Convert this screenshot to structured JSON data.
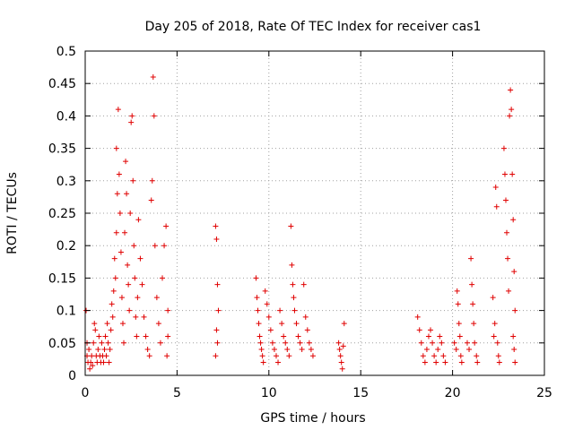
{
  "chart_data": {
    "type": "scatter",
    "title": "Day 205 of 2018, Rate Of TEC Index for receiver cas1",
    "xlabel": "GPS time / hours",
    "ylabel": "ROTI / TECUs",
    "xlim": [
      0,
      25
    ],
    "ylim": [
      0,
      0.5
    ],
    "x_ticks": [
      0,
      5,
      10,
      15,
      20,
      25
    ],
    "x_tick_labels": [
      "0",
      "5",
      "10",
      "15",
      "20",
      "25"
    ],
    "y_ticks": [
      0,
      0.05,
      0.1,
      0.15,
      0.2,
      0.25,
      0.3,
      0.35,
      0.4,
      0.45,
      0.5
    ],
    "y_tick_labels": [
      "0",
      "0.05",
      "0.1",
      "0.15",
      "0.2",
      "0.25",
      "0.3",
      "0.35",
      "0.4",
      "0.45",
      "0.5"
    ],
    "grid": true,
    "marker": "+",
    "color": "#e00000",
    "series": [
      {
        "points": [
          [
            0.05,
            0.1
          ],
          [
            0.1,
            0.05
          ],
          [
            0.1,
            0.03
          ],
          [
            0.15,
            0.02
          ],
          [
            0.2,
            0.04
          ],
          [
            0.25,
            0.01
          ],
          [
            0.3,
            0.02
          ],
          [
            0.35,
            0.03
          ],
          [
            0.4,
            0.015
          ],
          [
            0.45,
            0.05
          ],
          [
            0.5,
            0.08
          ],
          [
            0.55,
            0.07
          ],
          [
            0.6,
            0.03
          ],
          [
            0.65,
            0.02
          ],
          [
            0.7,
            0.04
          ],
          [
            0.75,
            0.06
          ],
          [
            0.8,
            0.03
          ],
          [
            0.85,
            0.02
          ],
          [
            0.9,
            0.05
          ],
          [
            0.95,
            0.03
          ],
          [
            1.0,
            0.02
          ],
          [
            1.05,
            0.04
          ],
          [
            1.1,
            0.06
          ],
          [
            1.15,
            0.03
          ],
          [
            1.2,
            0.08
          ],
          [
            1.25,
            0.05
          ],
          [
            1.3,
            0.02
          ],
          [
            1.35,
            0.04
          ],
          [
            1.4,
            0.07
          ],
          [
            1.45,
            0.11
          ],
          [
            1.5,
            0.09
          ],
          [
            1.55,
            0.13
          ],
          [
            1.6,
            0.18
          ],
          [
            1.65,
            0.15
          ],
          [
            1.7,
            0.22
          ],
          [
            1.75,
            0.28
          ],
          [
            1.7,
            0.35
          ],
          [
            1.8,
            0.41
          ],
          [
            1.85,
            0.31
          ],
          [
            1.9,
            0.25
          ],
          [
            1.95,
            0.19
          ],
          [
            2.0,
            0.12
          ],
          [
            2.05,
            0.08
          ],
          [
            2.1,
            0.05
          ],
          [
            2.15,
            0.22
          ],
          [
            2.2,
            0.33
          ],
          [
            2.25,
            0.28
          ],
          [
            2.3,
            0.17
          ],
          [
            2.35,
            0.14
          ],
          [
            2.4,
            0.1
          ],
          [
            2.45,
            0.25
          ],
          [
            2.5,
            0.39
          ],
          [
            2.55,
            0.4
          ],
          [
            2.6,
            0.3
          ],
          [
            2.65,
            0.2
          ],
          [
            2.7,
            0.15
          ],
          [
            2.75,
            0.09
          ],
          [
            2.8,
            0.06
          ],
          [
            2.85,
            0.12
          ],
          [
            2.9,
            0.24
          ],
          [
            3.0,
            0.18
          ],
          [
            3.1,
            0.14
          ],
          [
            3.2,
            0.09
          ],
          [
            3.3,
            0.06
          ],
          [
            3.4,
            0.04
          ],
          [
            3.5,
            0.03
          ],
          [
            3.6,
            0.27
          ],
          [
            3.65,
            0.3
          ],
          [
            3.7,
            0.46
          ],
          [
            3.75,
            0.4
          ],
          [
            3.8,
            0.2
          ],
          [
            3.9,
            0.12
          ],
          [
            4.0,
            0.08
          ],
          [
            4.1,
            0.05
          ],
          [
            4.2,
            0.15
          ],
          [
            4.3,
            0.2
          ],
          [
            4.4,
            0.23
          ],
          [
            4.5,
            0.1
          ],
          [
            4.5,
            0.06
          ],
          [
            4.45,
            0.03
          ],
          [
            7.1,
            0.23
          ],
          [
            7.15,
            0.21
          ],
          [
            7.2,
            0.14
          ],
          [
            7.25,
            0.1
          ],
          [
            7.15,
            0.07
          ],
          [
            7.2,
            0.05
          ],
          [
            7.1,
            0.03
          ],
          [
            9.3,
            0.15
          ],
          [
            9.35,
            0.12
          ],
          [
            9.4,
            0.1
          ],
          [
            9.45,
            0.08
          ],
          [
            9.5,
            0.06
          ],
          [
            9.55,
            0.05
          ],
          [
            9.6,
            0.04
          ],
          [
            9.65,
            0.03
          ],
          [
            9.7,
            0.02
          ],
          [
            9.8,
            0.13
          ],
          [
            9.9,
            0.11
          ],
          [
            10.0,
            0.09
          ],
          [
            10.1,
            0.07
          ],
          [
            10.2,
            0.05
          ],
          [
            10.3,
            0.04
          ],
          [
            10.4,
            0.03
          ],
          [
            10.5,
            0.02
          ],
          [
            10.6,
            0.1
          ],
          [
            10.7,
            0.08
          ],
          [
            10.8,
            0.06
          ],
          [
            10.9,
            0.05
          ],
          [
            11.0,
            0.04
          ],
          [
            11.1,
            0.03
          ],
          [
            11.2,
            0.23
          ],
          [
            11.25,
            0.17
          ],
          [
            11.3,
            0.14
          ],
          [
            11.35,
            0.12
          ],
          [
            11.4,
            0.1
          ],
          [
            11.5,
            0.08
          ],
          [
            11.6,
            0.06
          ],
          [
            11.7,
            0.05
          ],
          [
            11.8,
            0.04
          ],
          [
            11.9,
            0.14
          ],
          [
            12.0,
            0.09
          ],
          [
            12.1,
            0.07
          ],
          [
            12.2,
            0.05
          ],
          [
            12.3,
            0.04
          ],
          [
            12.4,
            0.03
          ],
          [
            13.8,
            0.05
          ],
          [
            13.85,
            0.04
          ],
          [
            13.9,
            0.03
          ],
          [
            13.95,
            0.02
          ],
          [
            14.0,
            0.01
          ],
          [
            14.05,
            0.045
          ],
          [
            14.1,
            0.08
          ],
          [
            18.1,
            0.09
          ],
          [
            18.2,
            0.07
          ],
          [
            18.3,
            0.05
          ],
          [
            18.4,
            0.03
          ],
          [
            18.5,
            0.02
          ],
          [
            18.6,
            0.04
          ],
          [
            18.7,
            0.06
          ],
          [
            18.8,
            0.07
          ],
          [
            18.9,
            0.05
          ],
          [
            19.0,
            0.03
          ],
          [
            19.1,
            0.02
          ],
          [
            19.2,
            0.04
          ],
          [
            19.3,
            0.06
          ],
          [
            19.4,
            0.05
          ],
          [
            19.5,
            0.03
          ],
          [
            19.6,
            0.02
          ],
          [
            20.1,
            0.05
          ],
          [
            20.2,
            0.04
          ],
          [
            20.25,
            0.13
          ],
          [
            20.3,
            0.11
          ],
          [
            20.35,
            0.08
          ],
          [
            20.4,
            0.06
          ],
          [
            20.45,
            0.03
          ],
          [
            20.5,
            0.02
          ],
          [
            20.8,
            0.05
          ],
          [
            20.9,
            0.04
          ],
          [
            21.0,
            0.18
          ],
          [
            21.05,
            0.14
          ],
          [
            21.1,
            0.11
          ],
          [
            21.15,
            0.08
          ],
          [
            21.2,
            0.05
          ],
          [
            21.3,
            0.03
          ],
          [
            21.35,
            0.02
          ],
          [
            22.2,
            0.12
          ],
          [
            22.25,
            0.06
          ],
          [
            22.3,
            0.08
          ],
          [
            22.35,
            0.29
          ],
          [
            22.4,
            0.26
          ],
          [
            22.45,
            0.05
          ],
          [
            22.5,
            0.03
          ],
          [
            22.55,
            0.02
          ],
          [
            22.8,
            0.35
          ],
          [
            22.85,
            0.31
          ],
          [
            22.9,
            0.27
          ],
          [
            22.95,
            0.22
          ],
          [
            23.0,
            0.18
          ],
          [
            23.05,
            0.13
          ],
          [
            23.1,
            0.4
          ],
          [
            23.15,
            0.44
          ],
          [
            23.2,
            0.41
          ],
          [
            23.25,
            0.31
          ],
          [
            23.3,
            0.24
          ],
          [
            23.35,
            0.16
          ],
          [
            23.4,
            0.1
          ],
          [
            23.3,
            0.06
          ],
          [
            23.35,
            0.04
          ],
          [
            23.4,
            0.02
          ]
        ]
      }
    ]
  }
}
